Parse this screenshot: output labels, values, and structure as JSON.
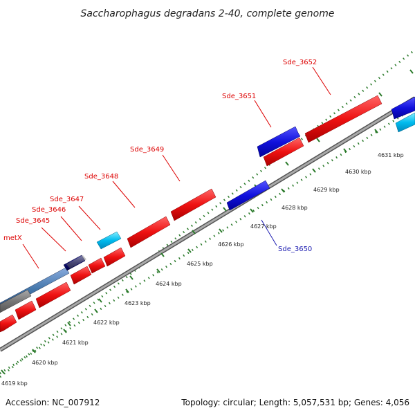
{
  "title": "Saccharophagus degradans 2-40, complete genome",
  "footer": {
    "accession": "Accession: NC_007912",
    "summary": "Topology: circular; Length: 5,057,531 bp; Genes: 4,056"
  },
  "ticks": [
    "4619 kbp",
    "4620 kbp",
    "4621 kbp",
    "4622 kbp",
    "4623 kbp",
    "4624 kbp",
    "4625 kbp",
    "4626 kbp",
    "4627 kbp",
    "4628 kbp",
    "4629 kbp",
    "4630 kbp",
    "4631 kbp"
  ],
  "gene_labels": {
    "metX": "metX",
    "sde3645": "Sde_3645",
    "sde3646": "Sde_3646",
    "sde3647": "Sde_3647",
    "sde3648": "Sde_3648",
    "sde3649": "Sde_3649",
    "sde3650": "Sde_3650",
    "sde3651": "Sde_3651",
    "sde3652": "Sde_3652"
  },
  "colors": {
    "forward_gene": "#ee1111",
    "reverse_gene": "#1111dd",
    "rna_gene": "#00bbee",
    "backbone": "#888888",
    "tick": "#2a7a2a",
    "label_red": "#dd0000",
    "label_blue": "#1a1ab0"
  }
}
